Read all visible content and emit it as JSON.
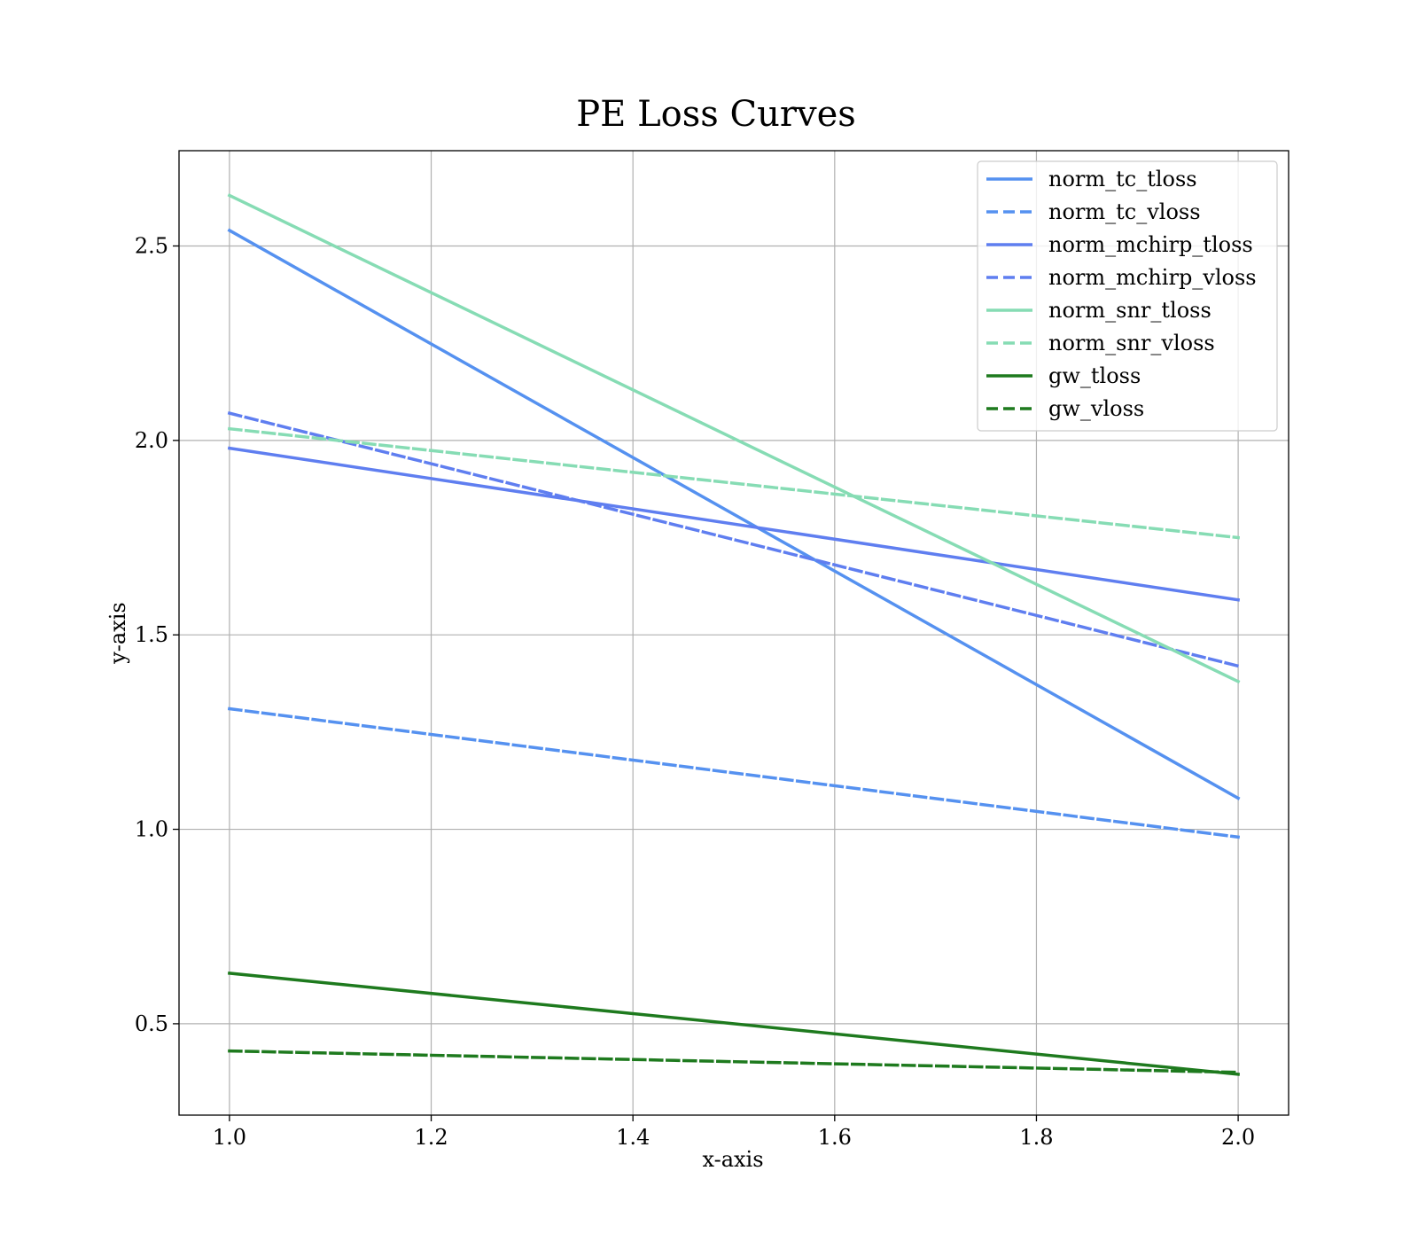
{
  "chart_data": {
    "type": "line",
    "title": "PE Loss Curves",
    "xlabel": "x-axis",
    "ylabel": "y-axis",
    "xlim": [
      0.95,
      2.05
    ],
    "ylim": [
      0.265,
      2.745
    ],
    "xticks": [
      1.0,
      1.2,
      1.4,
      1.6,
      1.8,
      2.0
    ],
    "xtick_labels": [
      "1.0",
      "1.2",
      "1.4",
      "1.6",
      "1.8",
      "2.0"
    ],
    "yticks": [
      0.5,
      1.0,
      1.5,
      2.0,
      2.5
    ],
    "ytick_labels": [
      "0.5",
      "1.0",
      "1.5",
      "2.0",
      "2.5"
    ],
    "grid": true,
    "legend_position": "top-right",
    "x": [
      1.0,
      2.0
    ],
    "series": [
      {
        "name": "norm_tc_tloss",
        "values": [
          2.54,
          1.08
        ],
        "color": "#5591f0",
        "dashed": false
      },
      {
        "name": "norm_tc_vloss",
        "values": [
          1.31,
          0.98
        ],
        "color": "#5591f0",
        "dashed": true
      },
      {
        "name": "norm_mchirp_tloss",
        "values": [
          1.98,
          1.59
        ],
        "color": "#5f7ef0",
        "dashed": false
      },
      {
        "name": "norm_mchirp_vloss",
        "values": [
          2.07,
          1.42
        ],
        "color": "#5f7ef0",
        "dashed": true
      },
      {
        "name": "norm_snr_tloss",
        "values": [
          2.63,
          1.38
        ],
        "color": "#86dcb4",
        "dashed": false
      },
      {
        "name": "norm_snr_vloss",
        "values": [
          2.03,
          1.75
        ],
        "color": "#86dcb4",
        "dashed": true
      },
      {
        "name": "gw_tloss",
        "values": [
          0.63,
          0.37
        ],
        "color": "#1e7a1e",
        "dashed": false
      },
      {
        "name": "gw_vloss",
        "values": [
          0.43,
          0.375
        ],
        "color": "#1e7a1e",
        "dashed": true
      }
    ]
  }
}
